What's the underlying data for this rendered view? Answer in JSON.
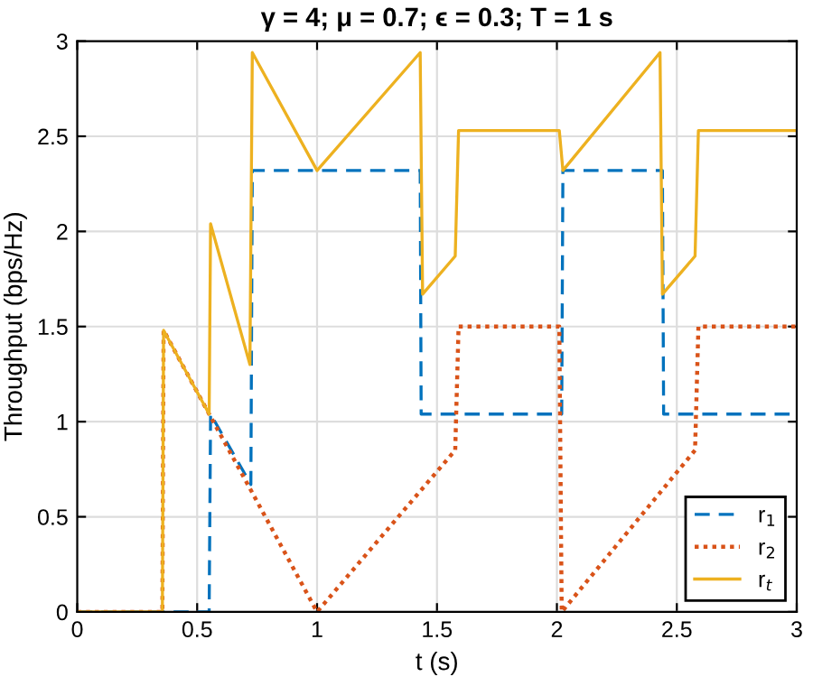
{
  "chart_data": {
    "type": "line",
    "title": "γ = 4; μ = 0.7; ϵ = 0.3; T = 1 s",
    "xlabel": "t (s)",
    "ylabel": "Throughput (bps/Hz)",
    "xlim": [
      0,
      3
    ],
    "ylim": [
      0,
      3
    ],
    "xticks": [
      0,
      0.5,
      1,
      1.5,
      2,
      2.5,
      3
    ],
    "yticks": [
      0,
      0.5,
      1,
      1.5,
      2,
      2.5,
      3
    ],
    "grid": true,
    "legend": "bottom right",
    "series": [
      {
        "name": "r$_{1}$",
        "color": "#0072bd",
        "line_style": "dashed",
        "x": [
          0,
          0.55,
          0.556,
          0.724,
          0.73,
          1.43,
          1.434,
          2.02,
          2.025,
          2.44,
          2.445,
          3
        ],
        "values": [
          0,
          0,
          1.04,
          0.67,
          2.32,
          2.32,
          1.04,
          1.04,
          2.32,
          2.32,
          1.04,
          1.04
        ]
      },
      {
        "name": "r$_{2}$",
        "color": "#d95319",
        "line_style": "dotted",
        "x": [
          0,
          0.355,
          0.36,
          0.55,
          0.724,
          1.0,
          1.576,
          1.59,
          2.01,
          2.02,
          2.576,
          2.59,
          3
        ],
        "values": [
          0,
          0,
          1.48,
          1.04,
          0.64,
          0,
          0.85,
          1.5,
          1.5,
          0,
          0.85,
          1.5,
          1.5
        ]
      },
      {
        "name": "r$_{t}$",
        "color": "#edb120",
        "line_style": "solid",
        "x": [
          0,
          0.355,
          0.36,
          0.55,
          0.556,
          0.72,
          0.73,
          1.0,
          1.43,
          1.44,
          1.576,
          1.59,
          2.01,
          2.025,
          2.43,
          2.44,
          2.576,
          2.59,
          3
        ],
        "values": [
          0,
          0,
          1.48,
          1.04,
          2.04,
          1.3,
          2.94,
          2.32,
          2.94,
          1.67,
          1.87,
          2.53,
          2.53,
          2.32,
          2.94,
          1.67,
          1.87,
          2.53,
          2.53
        ]
      }
    ]
  }
}
